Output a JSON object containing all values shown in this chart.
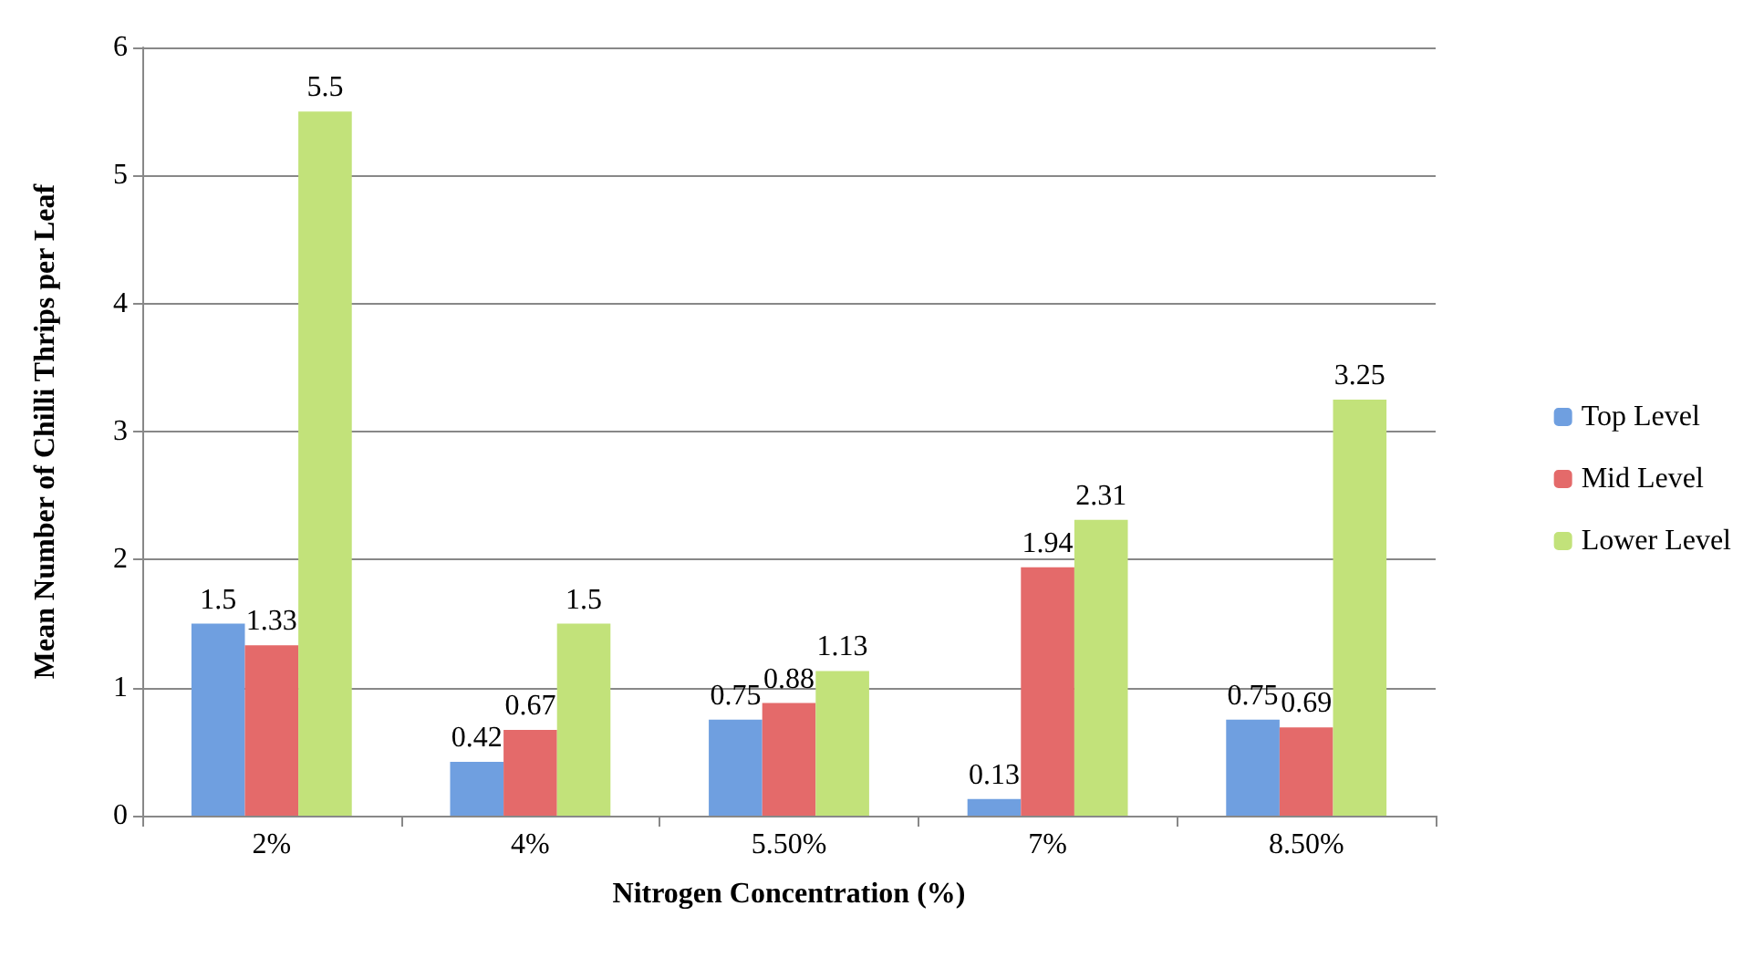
{
  "chart_data": {
    "type": "bar",
    "xlabel": "Nitrogen Concentration (%)",
    "ylabel": "Mean Number of Chilli Thrips per Leaf",
    "categories": [
      "2%",
      "4%",
      "5.50%",
      "7%",
      "8.50%"
    ],
    "series": [
      {
        "name": "Top Level",
        "color": "#6f9fe0",
        "values": [
          1.5,
          0.42,
          0.75,
          0.13,
          0.75
        ]
      },
      {
        "name": "Mid Level",
        "color": "#e46a6a",
        "values": [
          1.33,
          0.67,
          0.88,
          1.94,
          0.69
        ]
      },
      {
        "name": "Lower Level",
        "color": "#c2e27a",
        "values": [
          5.5,
          1.5,
          1.13,
          2.31,
          3.25
        ]
      }
    ],
    "ylim": [
      0,
      6
    ],
    "yticks": [
      0,
      1,
      2,
      3,
      4,
      5,
      6
    ],
    "grid": "y",
    "legend": "right",
    "data_labels": true
  }
}
